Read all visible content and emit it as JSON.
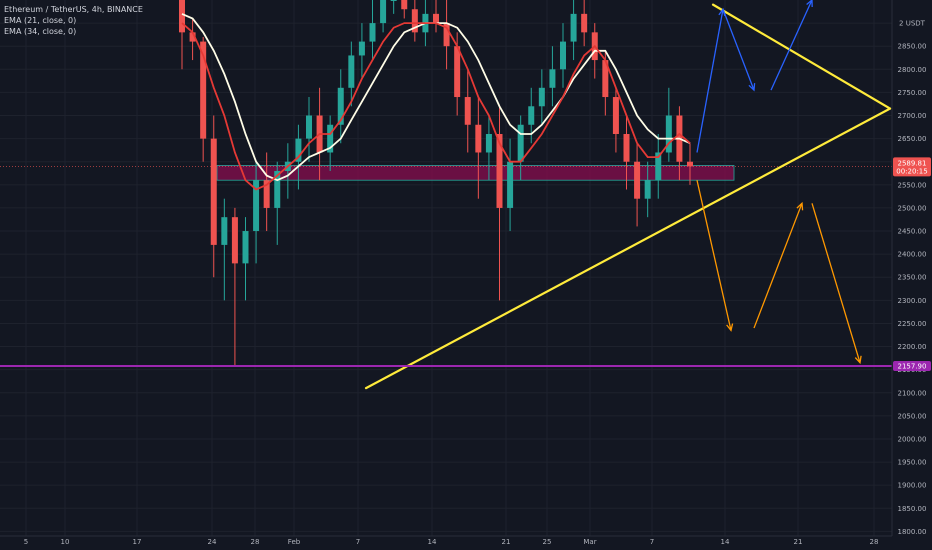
{
  "legend": {
    "symbol": "Ethereum / TetherUS, 4h, BINANCE",
    "ema_fast": "EMA (21, close, 0)",
    "ema_slow": "EMA (34, close, 0)"
  },
  "colors": {
    "background": "#131722",
    "grid": "#1e222d",
    "ema_fast": "#e53935",
    "ema_slow": "#fffde7",
    "candle_up": "#26a69a",
    "candle_down": "#ef5350",
    "trendline": "#ffeb3b",
    "target_line": "#9c27b0",
    "projection_bear": "#ff9800",
    "projection_bull": "#2962ff",
    "zone_fill": "#880e4f",
    "price_tag": "#ef5350",
    "target_tag": "#9c27b0"
  },
  "chart_data": {
    "type": "candlestick",
    "y_unit": "USDT",
    "y_range": [
      1790,
      2950
    ],
    "y_ticks": [
      1800,
      1850,
      1900,
      1950,
      2000,
      2050,
      2100,
      2150,
      2200,
      2250,
      2300,
      2350,
      2400,
      2450,
      2500,
      2550,
      2600,
      2650,
      2700,
      2750,
      2800,
      2850,
      2900
    ],
    "y_tick_labels": {
      "2900": "2 USDT"
    },
    "x_ticks": [
      "5",
      "10",
      "17",
      "24",
      "28",
      "Feb",
      "7",
      "14",
      "21",
      "25",
      "Mar",
      "7",
      "14",
      "21",
      "28"
    ],
    "current_price": "2589.81",
    "countdown": "00:20:15",
    "target_level": "2157.90",
    "candles": [
      [
        2950,
        2950,
        2800,
        2880
      ],
      [
        2880,
        2910,
        2820,
        2860
      ],
      [
        2860,
        2870,
        2600,
        2650
      ],
      [
        2650,
        2700,
        2350,
        2420
      ],
      [
        2420,
        2520,
        2300,
        2480
      ],
      [
        2480,
        2500,
        2160,
        2380
      ],
      [
        2380,
        2480,
        2300,
        2450
      ],
      [
        2450,
        2600,
        2380,
        2560
      ],
      [
        2560,
        2620,
        2450,
        2500
      ],
      [
        2500,
        2600,
        2420,
        2580
      ],
      [
        2580,
        2640,
        2520,
        2600
      ],
      [
        2600,
        2680,
        2540,
        2650
      ],
      [
        2650,
        2740,
        2600,
        2700
      ],
      [
        2700,
        2760,
        2560,
        2620
      ],
      [
        2620,
        2700,
        2580,
        2680
      ],
      [
        2680,
        2800,
        2640,
        2760
      ],
      [
        2760,
        2860,
        2720,
        2830
      ],
      [
        2830,
        2900,
        2780,
        2860
      ],
      [
        2860,
        2950,
        2820,
        2900
      ],
      [
        2900,
        2980,
        2880,
        2950
      ],
      [
        2950,
        2980,
        2920,
        2950
      ],
      [
        2950,
        2980,
        2910,
        2930
      ],
      [
        2930,
        2960,
        2860,
        2880
      ],
      [
        2880,
        2950,
        2850,
        2920
      ],
      [
        2920,
        2960,
        2880,
        2900
      ],
      [
        2900,
        2950,
        2800,
        2850
      ],
      [
        2850,
        2880,
        2700,
        2740
      ],
      [
        2740,
        2800,
        2620,
        2680
      ],
      [
        2680,
        2740,
        2520,
        2620
      ],
      [
        2620,
        2700,
        2560,
        2660
      ],
      [
        2660,
        2720,
        2300,
        2500
      ],
      [
        2500,
        2650,
        2450,
        2600
      ],
      [
        2600,
        2700,
        2560,
        2680
      ],
      [
        2680,
        2760,
        2640,
        2720
      ],
      [
        2720,
        2800,
        2680,
        2760
      ],
      [
        2760,
        2850,
        2720,
        2800
      ],
      [
        2800,
        2900,
        2760,
        2860
      ],
      [
        2860,
        2950,
        2820,
        2920
      ],
      [
        2920,
        2950,
        2850,
        2880
      ],
      [
        2880,
        2900,
        2780,
        2820
      ],
      [
        2820,
        2840,
        2700,
        2740
      ],
      [
        2740,
        2760,
        2620,
        2660
      ],
      [
        2660,
        2700,
        2540,
        2600
      ],
      [
        2600,
        2640,
        2460,
        2520
      ],
      [
        2520,
        2600,
        2480,
        2560
      ],
      [
        2560,
        2660,
        2520,
        2620
      ],
      [
        2620,
        2760,
        2600,
        2700
      ],
      [
        2700,
        2720,
        2560,
        2600
      ],
      [
        2600,
        2640,
        2550,
        2590
      ]
    ],
    "ema_21": [
      2900,
      2880,
      2830,
      2760,
      2700,
      2620,
      2560,
      2540,
      2550,
      2570,
      2590,
      2610,
      2640,
      2660,
      2660,
      2690,
      2730,
      2780,
      2820,
      2860,
      2890,
      2900,
      2900,
      2900,
      2900,
      2890,
      2850,
      2800,
      2740,
      2700,
      2640,
      2600,
      2600,
      2630,
      2660,
      2700,
      2740,
      2790,
      2830,
      2850,
      2820,
      2760,
      2700,
      2640,
      2610,
      2610,
      2640,
      2660,
      2640
    ],
    "ema_34": [
      2920,
      2910,
      2880,
      2840,
      2790,
      2730,
      2660,
      2600,
      2570,
      2560,
      2570,
      2590,
      2610,
      2620,
      2630,
      2650,
      2690,
      2730,
      2770,
      2810,
      2850,
      2880,
      2890,
      2900,
      2900,
      2900,
      2890,
      2860,
      2820,
      2770,
      2720,
      2680,
      2660,
      2660,
      2680,
      2710,
      2740,
      2780,
      2810,
      2840,
      2840,
      2800,
      2750,
      2700,
      2670,
      2650,
      2650,
      2650,
      2640
    ],
    "candles_note_order": "open,high,low,close",
    "zone": [
      2560,
      2592
    ],
    "trendline_upper": [
      [
        "Mar 10",
        2940
      ],
      [
        "Apr 1",
        2715
      ]
    ],
    "trendline_lower": [
      [
        "Feb 5",
        2110
      ],
      [
        "Apr 1",
        2715
      ]
    ],
    "projection_bear": [
      [
        [
          "Mar 8",
          2560
        ],
        [
          "Mar 14",
          2235
        ]
      ],
      [
        [
          "Mar 16",
          2240
        ],
        [
          "Mar 21",
          2510
        ]
      ],
      [
        [
          "Mar 22",
          2510
        ],
        [
          "Mar 28",
          2165
        ]
      ]
    ],
    "projection_bull": [
      [
        [
          "Mar 8",
          2620
        ],
        [
          "Mar 12",
          2930
        ]
      ],
      [
        [
          "Mar 12",
          2930
        ],
        [
          "Mar 16",
          2755
        ]
      ],
      [
        [
          "Mar 17",
          2755
        ],
        [
          "Mar 22",
          2950
        ]
      ]
    ]
  }
}
